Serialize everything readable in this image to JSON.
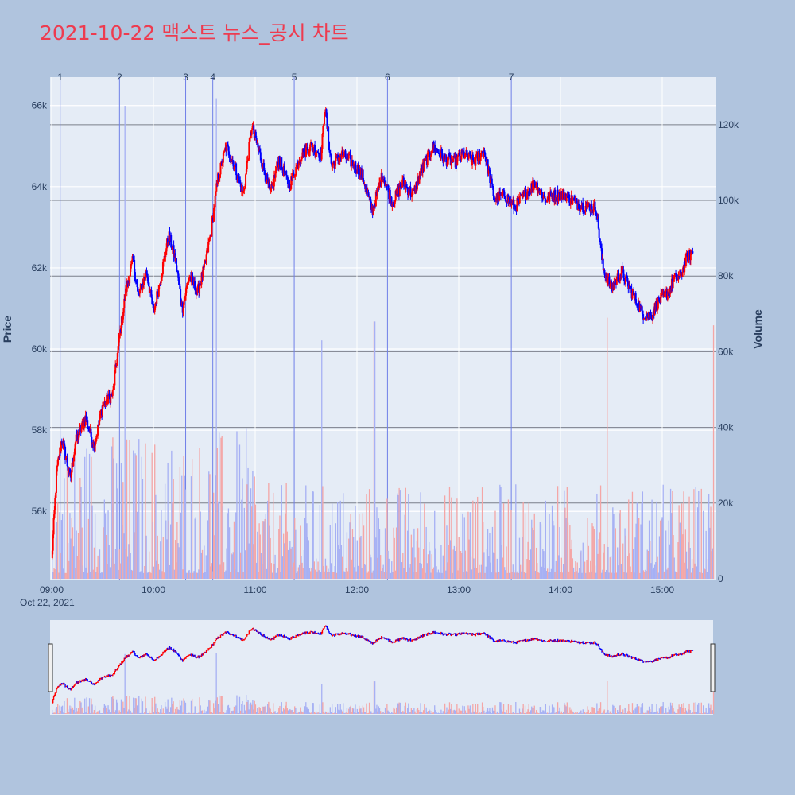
{
  "chart_data": {
    "type": "candlestick",
    "title": "2021-10-22 맥스트 뉴스_공시 차트",
    "xlabel": "",
    "ylabel": "Price",
    "y2label": "Volume",
    "date_label": "Oct 22, 2021",
    "x_time_range": [
      "09:00",
      "15:30"
    ],
    "x_tick_labels": [
      "09:00",
      "10:00",
      "11:00",
      "12:00",
      "13:00",
      "14:00",
      "15:00"
    ],
    "price_ylim": [
      54300,
      66700
    ],
    "price_tick_values": [
      56000,
      58000,
      60000,
      62000,
      64000,
      66000
    ],
    "price_tick_labels": [
      "56k",
      "58k",
      "60k",
      "62k",
      "64k",
      "66k"
    ],
    "volume_ylim": [
      0,
      133000
    ],
    "volume_tick_values": [
      0,
      20000,
      40000,
      60000,
      80000,
      100000,
      120000
    ],
    "volume_tick_labels": [
      "0",
      "20k",
      "40k",
      "60k",
      "80k",
      "100k",
      "120k"
    ],
    "news_markers": [
      {
        "label": "1",
        "time": "09:05"
      },
      {
        "label": "2",
        "time": "09:40"
      },
      {
        "label": "3",
        "time": "10:19"
      },
      {
        "label": "4",
        "time": "10:35"
      },
      {
        "label": "5",
        "time": "11:23"
      },
      {
        "label": "6",
        "time": "12:18"
      },
      {
        "label": "7",
        "time": "13:31"
      }
    ],
    "price_anchors": [
      {
        "time": "09:00",
        "price": 54800
      },
      {
        "time": "09:03",
        "price": 57000
      },
      {
        "time": "09:06",
        "price": 57800
      },
      {
        "time": "09:11",
        "price": 56800
      },
      {
        "time": "09:14",
        "price": 57700
      },
      {
        "time": "09:20",
        "price": 58300
      },
      {
        "time": "09:25",
        "price": 57600
      },
      {
        "time": "09:30",
        "price": 58600
      },
      {
        "time": "09:36",
        "price": 58900
      },
      {
        "time": "09:40",
        "price": 60300
      },
      {
        "time": "09:44",
        "price": 61500
      },
      {
        "time": "09:48",
        "price": 62200
      },
      {
        "time": "09:51",
        "price": 61300
      },
      {
        "time": "09:56",
        "price": 61900
      },
      {
        "time": "10:00",
        "price": 60900
      },
      {
        "time": "10:04",
        "price": 61700
      },
      {
        "time": "10:09",
        "price": 62800
      },
      {
        "time": "10:13",
        "price": 62200
      },
      {
        "time": "10:17",
        "price": 61000
      },
      {
        "time": "10:21",
        "price": 61800
      },
      {
        "time": "10:26",
        "price": 61400
      },
      {
        "time": "10:30",
        "price": 62000
      },
      {
        "time": "10:34",
        "price": 62900
      },
      {
        "time": "10:38",
        "price": 64200
      },
      {
        "time": "10:43",
        "price": 65000
      },
      {
        "time": "10:48",
        "price": 64500
      },
      {
        "time": "10:53",
        "price": 63800
      },
      {
        "time": "10:58",
        "price": 65500
      },
      {
        "time": "11:04",
        "price": 64600
      },
      {
        "time": "11:09",
        "price": 63800
      },
      {
        "time": "11:14",
        "price": 64700
      },
      {
        "time": "11:20",
        "price": 64000
      },
      {
        "time": "11:27",
        "price": 64800
      },
      {
        "time": "11:33",
        "price": 65000
      },
      {
        "time": "11:39",
        "price": 64800
      },
      {
        "time": "11:41",
        "price": 66000
      },
      {
        "time": "11:45",
        "price": 64500
      },
      {
        "time": "11:51",
        "price": 64800
      },
      {
        "time": "11:57",
        "price": 64600
      },
      {
        "time": "12:03",
        "price": 64300
      },
      {
        "time": "12:09",
        "price": 63400
      },
      {
        "time": "12:15",
        "price": 64300
      },
      {
        "time": "12:21",
        "price": 63600
      },
      {
        "time": "12:27",
        "price": 64100
      },
      {
        "time": "12:33",
        "price": 63800
      },
      {
        "time": "12:39",
        "price": 64500
      },
      {
        "time": "12:45",
        "price": 65000
      },
      {
        "time": "12:51",
        "price": 64700
      },
      {
        "time": "12:57",
        "price": 64600
      },
      {
        "time": "13:03",
        "price": 64800
      },
      {
        "time": "13:09",
        "price": 64600
      },
      {
        "time": "13:15",
        "price": 64900
      },
      {
        "time": "13:21",
        "price": 63700
      },
      {
        "time": "13:27",
        "price": 63800
      },
      {
        "time": "13:33",
        "price": 63500
      },
      {
        "time": "13:39",
        "price": 63800
      },
      {
        "time": "13:45",
        "price": 64100
      },
      {
        "time": "13:51",
        "price": 63700
      },
      {
        "time": "13:57",
        "price": 63800
      },
      {
        "time": "14:03",
        "price": 63800
      },
      {
        "time": "14:09",
        "price": 63600
      },
      {
        "time": "14:15",
        "price": 63500
      },
      {
        "time": "14:21",
        "price": 63500
      },
      {
        "time": "14:25",
        "price": 62000
      },
      {
        "time": "14:30",
        "price": 61500
      },
      {
        "time": "14:36",
        "price": 61900
      },
      {
        "time": "14:42",
        "price": 61400
      },
      {
        "time": "14:48",
        "price": 60900
      },
      {
        "time": "14:53",
        "price": 60800
      },
      {
        "time": "14:58",
        "price": 61200
      },
      {
        "time": "15:02",
        "price": 61300
      },
      {
        "time": "15:07",
        "price": 61700
      },
      {
        "time": "15:11",
        "price": 61800
      },
      {
        "time": "15:14",
        "price": 62200
      },
      {
        "time": "15:18",
        "price": 62400
      }
    ],
    "volume_peaks": [
      {
        "time": "09:43",
        "volume": 125000
      },
      {
        "time": "10:37",
        "volume": 127000
      },
      {
        "time": "11:39",
        "volume": 63000
      },
      {
        "time": "12:10",
        "volume": 68000
      },
      {
        "time": "14:27",
        "volume": 69000
      },
      {
        "time": "15:30",
        "volume": 67000
      }
    ],
    "colors": {
      "up": "#ff0000",
      "down": "#0000ff",
      "vol_up": "#f4a6a6",
      "vol_down": "#a6b0f4",
      "news_line": "#6f7fe8",
      "plot_bg": "#e5ecf6",
      "title": "#ee3b4f"
    },
    "grid": true,
    "rangeslider": true
  }
}
